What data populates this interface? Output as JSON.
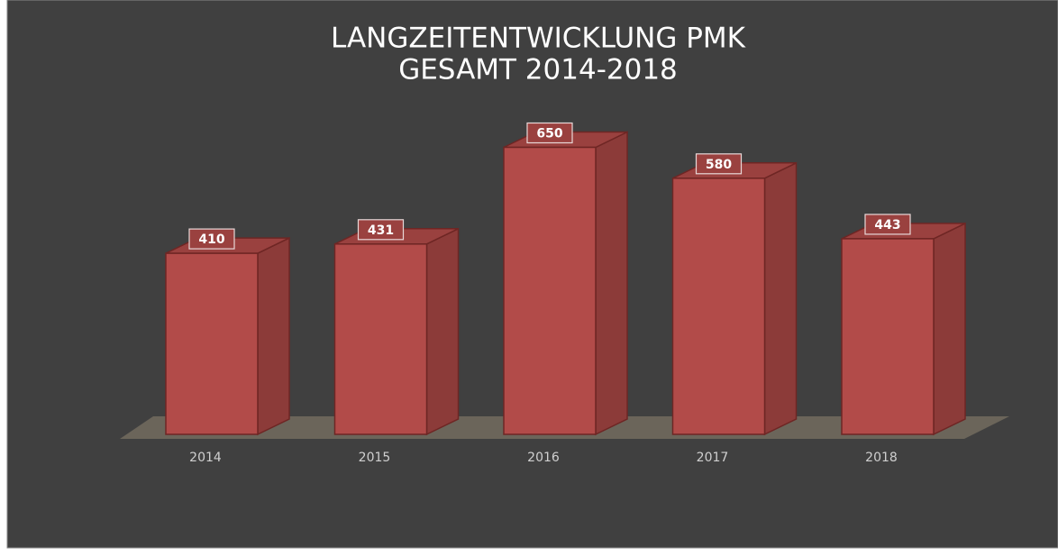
{
  "chart_data": {
    "type": "bar3d",
    "title": [
      "LANGZEITENTWICKLUNG PMK",
      "GESAMT 2014-2018"
    ],
    "categories": [
      "2014",
      "2015",
      "2016",
      "2017",
      "2018"
    ],
    "values": [
      410,
      431,
      650,
      580,
      443
    ],
    "color": "#b24b49"
  }
}
